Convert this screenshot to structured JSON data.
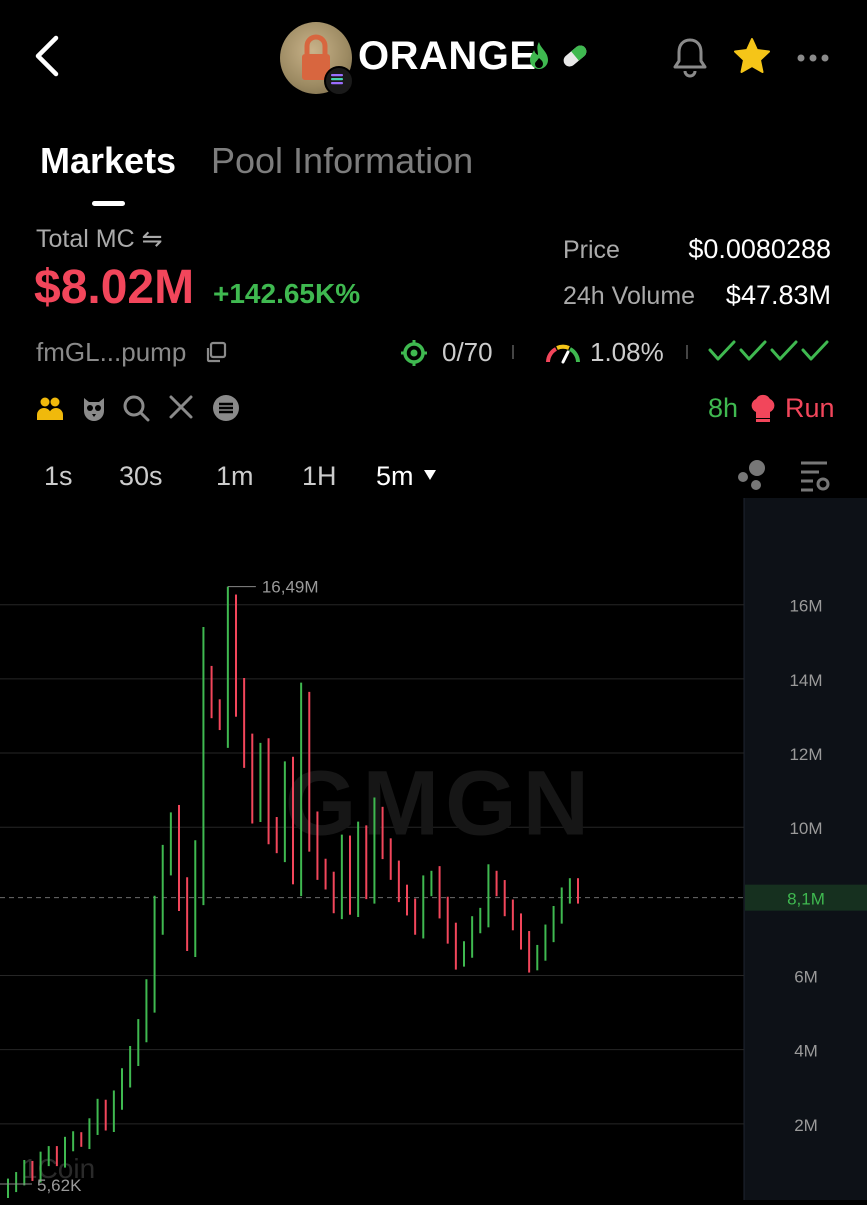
{
  "header": {
    "token_name": "ORANGE",
    "icons": [
      "back-arrow-icon",
      "fire-icon",
      "pill-icon",
      "bell-icon",
      "star-icon",
      "more-icon"
    ]
  },
  "tabs": [
    {
      "label": "Markets",
      "active": true
    },
    {
      "label": "Pool Information",
      "active": false
    }
  ],
  "stats": {
    "total_mc_label": "Total MC ⇋",
    "total_mc_value": "$8.02M",
    "total_mc_change": "+142.65K%",
    "price_label": "Price",
    "price_value": "$0.0080288",
    "volume_label": "24h Volume",
    "volume_value": "$47.83M",
    "address": "fmGL...pump",
    "holders_value": "0/70",
    "gauge_value": "1.08%",
    "run_time": "8h",
    "run_label": "Run"
  },
  "colors": {
    "up": "#3fb950",
    "down": "#f2465b",
    "accent_star": "#f5c518",
    "social_yellow": "#f0b90b"
  },
  "timeframes": [
    {
      "label": "1s"
    },
    {
      "label": "30s"
    },
    {
      "label": "1m"
    },
    {
      "label": "1H"
    },
    {
      "label": "5m",
      "active": true
    }
  ],
  "chart_data": {
    "type": "candlestick",
    "y_tick_labels": [
      "16M",
      "14M",
      "12M",
      "10M",
      "6M",
      "4M",
      "2M"
    ],
    "y_ticks": [
      16,
      14,
      12,
      10,
      6,
      4,
      2
    ],
    "ylim": [
      0,
      17.8
    ],
    "current_value_label": "8,1M",
    "current_value": 8.1,
    "max_label": "16,49M",
    "max_value": 16.49,
    "min_label": "5,62K",
    "min_value": 0.00562,
    "watermark_center": "GMGN",
    "watermark_corner": "1Coin",
    "grid": true,
    "candles_close": [
      0.3,
      0.5,
      0.8,
      0.6,
      1.0,
      1.2,
      1.0,
      1.4,
      1.6,
      1.5,
      1.9,
      2.4,
      2.0,
      2.6,
      3.2,
      3.8,
      4.5,
      5.5,
      7.5,
      9.0,
      10.0,
      8.2,
      7.0,
      9.0,
      14.0,
      13.2,
      12.8,
      15.6,
      13.5,
      12.0,
      10.5,
      11.8,
      10.0,
      9.5,
      11.2,
      9.0,
      12.8,
      10.0,
      8.9,
      8.5,
      7.9,
      9.3,
      8.0,
      9.6,
      8.4,
      10.2,
      9.4,
      8.8,
      8.2,
      7.8,
      7.3,
      8.3,
      8.6,
      7.8,
      7.1,
      6.4,
      6.7,
      7.3,
      7.6,
      8.6,
      8.3,
      7.8,
      7.4,
      6.9,
      6.3,
      6.6,
      7.1,
      7.6,
      8.1,
      8.4,
      8.1
    ]
  }
}
